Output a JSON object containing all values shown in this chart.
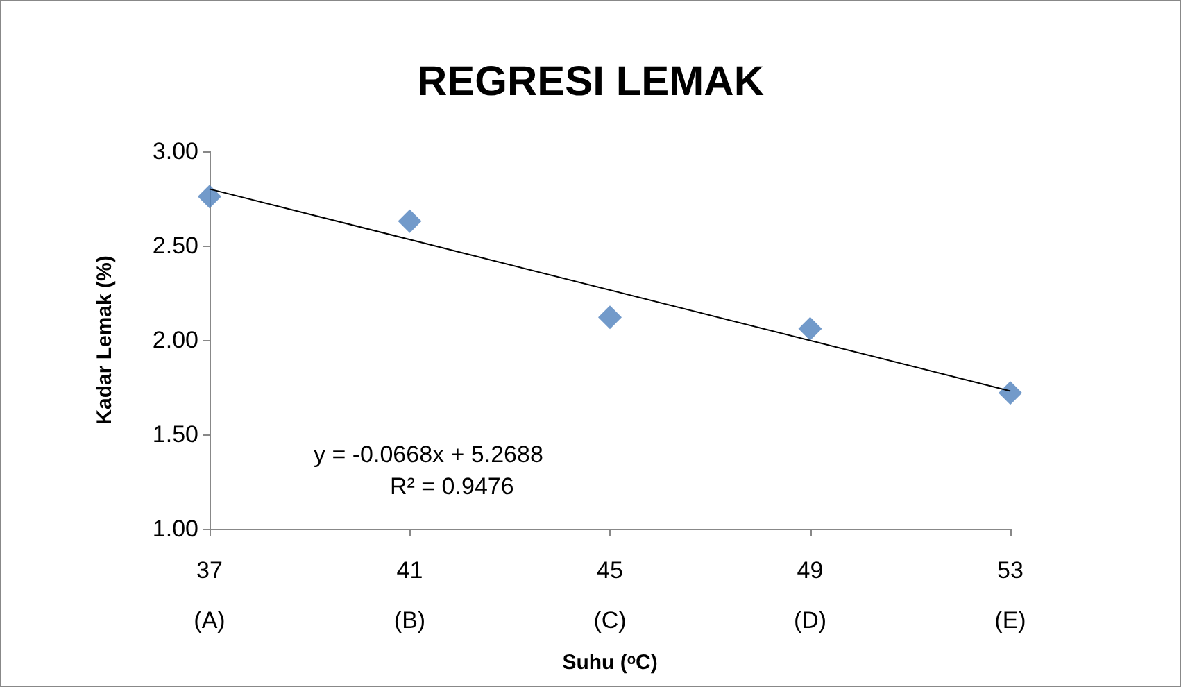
{
  "chart_data": {
    "type": "scatter",
    "title": "REGRESI LEMAK",
    "xlabel": "Suhu (ᵒC)",
    "ylabel": "Kadar Lemak (%)",
    "x": [
      37,
      41,
      45,
      49,
      53
    ],
    "series": [
      {
        "color": "#4f81bd",
        "marker": "diamond",
        "values": [
          2.76,
          2.63,
          2.12,
          2.06,
          1.72
        ]
      },
      {
        "type": "line",
        "color": "#000000",
        "marker": "none",
        "line_style": "solid",
        "x": [
          37,
          53
        ],
        "values": [
          2.8,
          1.73
        ]
      }
    ],
    "xlim": [
      37,
      53
    ],
    "xticks": [
      {
        "value": 37,
        "label": "37\n(A)"
      },
      {
        "value": 41,
        "label": "41\n(B)"
      },
      {
        "value": 45,
        "label": "45\n(C)"
      },
      {
        "value": 49,
        "label": "49\n(D)"
      },
      {
        "value": 53,
        "label": "53\n(E)"
      }
    ],
    "ylim": [
      1,
      3
    ],
    "yticks": [
      {
        "value": 1,
        "label": "1.00"
      },
      {
        "value": 1.5,
        "label": "1.50"
      },
      {
        "value": 2,
        "label": "2.00"
      },
      {
        "value": 2.5,
        "label": "2.50"
      },
      {
        "value": 3,
        "label": "3.00"
      }
    ],
    "annotations": [
      "y = -0.0668x + 5.2688",
      "R² = 0.9476"
    ],
    "grid": false
  }
}
